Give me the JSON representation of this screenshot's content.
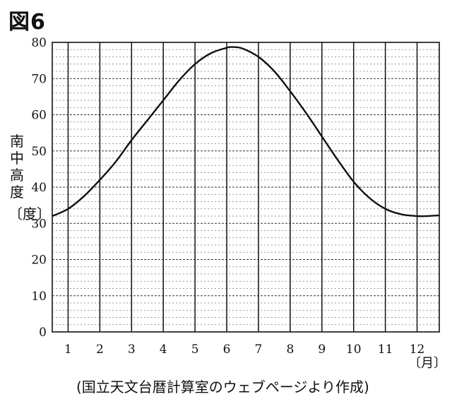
{
  "figure_label": "図6",
  "source_note": "(国立天文台暦計算室のウェブページより作成)",
  "chart_data": {
    "type": "line",
    "title": "",
    "xlabel": "",
    "ylabel": "南中高度",
    "ylabel_unit": "〔度〕",
    "xunit": "〔月〕",
    "categories": [
      "1",
      "2",
      "3",
      "4",
      "5",
      "6",
      "7",
      "8",
      "9",
      "10",
      "11",
      "12"
    ],
    "x_range": [
      0.5,
      12.7
    ],
    "ylim": [
      0,
      80
    ],
    "yticks": [
      "0",
      "10",
      "20",
      "30",
      "40",
      "50",
      "60",
      "70",
      "80"
    ],
    "grid": true,
    "series": [
      {
        "x": [
          0.5,
          1,
          1.5,
          2,
          2.5,
          3,
          3.5,
          4,
          4.5,
          5,
          5.5,
          6,
          6.2,
          6.5,
          7,
          7.5,
          8,
          8.5,
          9,
          9.5,
          10,
          10.5,
          11,
          11.5,
          12,
          12.3,
          12.7
        ],
        "values": [
          32,
          34,
          37.5,
          42,
          47,
          53,
          58.5,
          64,
          69.5,
          74,
          77,
          78.5,
          78.7,
          78.3,
          76,
          72,
          66.5,
          60.5,
          54,
          47.5,
          41.5,
          37,
          34,
          32.5,
          32,
          32,
          32.2
        ],
        "color": "#111111"
      }
    ]
  }
}
